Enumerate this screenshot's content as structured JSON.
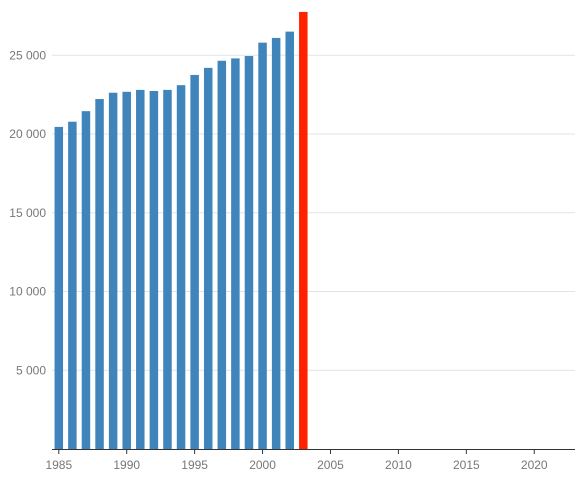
{
  "chart_data": {
    "type": "bar",
    "title": "",
    "xlabel": "",
    "ylabel": "",
    "x": [
      1985,
      1986,
      1987,
      1988,
      1989,
      1990,
      1991,
      1992,
      1993,
      1994,
      1995,
      1996,
      1997,
      1998,
      1999,
      2000,
      2001,
      2002,
      2003
    ],
    "values": [
      20450,
      20780,
      21450,
      22220,
      22620,
      22680,
      22800,
      22730,
      22800,
      23100,
      23750,
      24200,
      24650,
      24800,
      24950,
      25800,
      26100,
      26500,
      27750
    ],
    "highlight": {
      "x": 2003,
      "color": "#ff2200"
    },
    "bar_color": "#3f85bc",
    "xlim": [
      1984.5,
      2023
    ],
    "ylim": [
      0,
      28000
    ],
    "x_ticks": [
      1985,
      1990,
      1995,
      2000,
      2005,
      2010,
      2015,
      2020
    ],
    "x_tick_labels": [
      "1985",
      "1990",
      "1995",
      "2000",
      "2005",
      "2010",
      "2015",
      "2020"
    ],
    "y_ticks": [
      5000,
      10000,
      15000,
      20000,
      25000
    ],
    "y_tick_labels": [
      "5 000",
      "10 000",
      "15 000",
      "20 000",
      "25 000"
    ],
    "grid": true,
    "legend": "none"
  }
}
